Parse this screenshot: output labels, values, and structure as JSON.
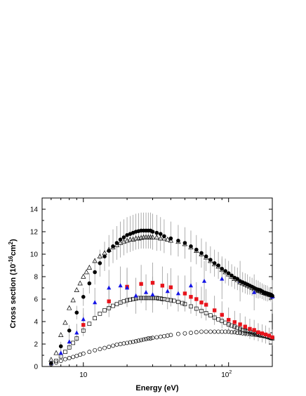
{
  "chart_data": {
    "type": "scatter",
    "xscale": "log",
    "xlim": [
      5.2,
      200
    ],
    "ylim": [
      0,
      15
    ],
    "xlabel": "Energy (eV)",
    "ylabel": "Cross section (10⁻¹⁶cm²)",
    "ylabel_parts": {
      "main": "Cross section (10",
      "exp": "-16",
      "unit": "cm",
      "unit_exp": "2",
      "close": ")"
    },
    "yticks": [
      "0",
      "2",
      "4",
      "6",
      "8",
      "10",
      "12",
      "14"
    ],
    "xtick_labels": [
      {
        "x": 10,
        "base": "10",
        "exp": ""
      },
      {
        "x": 100,
        "base": "10",
        "exp": "2"
      }
    ],
    "grid": false,
    "legend": "none",
    "series": [
      {
        "marker": "filled-circle",
        "color": "#000000",
        "error_bars": true,
        "x": [
          6.0,
          7.0,
          8.0,
          9.0,
          10.0,
          11.0,
          12.0,
          13.0,
          14.0,
          15.0,
          16.0,
          17.0,
          18.0,
          19.0,
          20.0,
          21.0,
          22.0,
          23.0,
          24.0,
          25.0,
          26.0,
          27.0,
          28.0,
          29.0,
          30.0,
          32.0,
          34.0,
          36.0,
          40.0,
          45.0,
          50.0,
          55.0,
          60.0,
          65.0,
          70.0,
          75.0,
          80.0,
          85.0,
          90.0,
          95.0,
          100.0,
          105.0,
          110.0,
          115.0,
          120.0,
          125.0,
          130.0,
          135.0,
          140.0,
          145.0,
          150.0,
          155.0,
          160.0,
          165.0,
          170.0,
          175.0,
          180.0,
          185.0,
          190.0,
          195.0,
          200.0
        ],
        "y": [
          0.3,
          1.8,
          3.2,
          4.8,
          6.2,
          7.4,
          8.4,
          9.2,
          9.8,
          10.3,
          10.7,
          11.0,
          11.3,
          11.5,
          11.7,
          11.8,
          11.9,
          12.0,
          12.05,
          12.1,
          12.1,
          12.1,
          12.1,
          12.1,
          12.0,
          11.9,
          11.8,
          11.6,
          11.4,
          11.2,
          11.0,
          10.7,
          10.4,
          10.1,
          9.8,
          9.5,
          9.2,
          9.0,
          8.7,
          8.5,
          8.3,
          8.1,
          7.9,
          7.8,
          7.6,
          7.5,
          7.4,
          7.3,
          7.2,
          7.1,
          7.0,
          6.9,
          6.85,
          6.8,
          6.7,
          6.6,
          6.55,
          6.5,
          6.45,
          6.4,
          6.3
        ],
        "err": [
          0.3,
          0.4,
          0.5,
          0.6,
          0.8,
          0.9,
          1.1,
          1.2,
          1.3,
          1.4,
          1.5,
          1.5,
          1.6,
          1.6,
          1.6,
          1.6,
          1.6,
          1.6,
          1.6,
          1.6,
          1.6,
          1.6,
          1.6,
          1.6,
          1.6,
          1.6,
          1.5,
          1.5,
          1.5,
          1.4,
          1.4,
          1.4,
          1.3,
          1.3,
          1.3,
          1.2,
          1.2,
          1.2,
          1.1,
          1.1,
          1.1,
          1.0,
          1.0,
          1.0,
          0.9,
          0.9,
          0.9,
          0.9,
          0.8,
          0.8,
          0.8,
          0.8,
          0.8,
          0.7,
          0.7,
          0.7,
          0.7,
          0.7,
          0.6,
          0.6,
          0.6
        ]
      },
      {
        "marker": "open-triangle",
        "color": "#000000",
        "x": [
          6.0,
          6.5,
          7.0,
          7.5,
          8.0,
          8.5,
          9.0,
          9.5,
          10.0,
          10.5,
          11.0,
          12.0,
          13.0,
          14.0,
          15.0,
          16.0,
          17.0,
          18.0,
          19.0,
          20.0,
          21.0,
          22.0,
          23.0,
          24.0,
          25.0,
          26.0,
          27.0,
          28.0,
          29.0,
          30.0,
          32.0,
          34.0,
          36.0,
          38.0,
          40.0,
          45.0,
          50.0,
          55.0,
          60.0,
          65.0,
          70.0,
          75.0,
          80.0,
          85.0,
          90.0,
          95.0,
          100.0,
          105.0,
          110.0,
          115.0,
          120.0,
          125.0,
          130.0,
          135.0,
          140.0,
          145.0,
          150.0,
          155.0,
          160.0,
          165.0,
          170.0,
          175.0,
          180.0,
          185.0,
          190.0,
          195.0,
          200.0
        ],
        "y": [
          0.6,
          1.2,
          2.8,
          3.9,
          5.2,
          5.9,
          6.8,
          7.4,
          8.0,
          8.4,
          8.8,
          9.4,
          9.8,
          10.1,
          10.4,
          10.6,
          10.8,
          11.0,
          11.1,
          11.2,
          11.3,
          11.3,
          11.4,
          11.4,
          11.45,
          11.5,
          11.5,
          11.5,
          11.5,
          11.5,
          11.5,
          11.4,
          11.4,
          11.3,
          11.2,
          11.1,
          10.9,
          10.6,
          10.3,
          10.0,
          9.7,
          9.4,
          9.1,
          8.9,
          8.6,
          8.4,
          8.2,
          8.0,
          7.8,
          7.7,
          7.5,
          7.4,
          7.3,
          7.2,
          7.1,
          7.0,
          6.9,
          6.8,
          6.75,
          6.7,
          6.6,
          6.55,
          6.5,
          6.45,
          6.4,
          6.35,
          6.3
        ]
      },
      {
        "marker": "filled-square",
        "color": "#e8141c",
        "x": [
          10.0,
          15.0,
          20.0,
          25.0,
          30.0,
          35.0,
          40.0,
          50.0,
          55.0,
          60.0,
          65.0,
          70.0,
          80.0,
          90.0,
          100.0,
          110.0,
          120.0,
          130.0,
          140.0,
          150.0,
          160.0,
          170.0,
          180.0,
          190.0,
          200.0
        ],
        "y": [
          3.7,
          5.8,
          7.1,
          7.35,
          7.45,
          7.2,
          7.05,
          6.5,
          6.2,
          6.0,
          5.7,
          5.5,
          5.0,
          4.6,
          4.15,
          3.95,
          3.75,
          3.55,
          3.35,
          3.25,
          3.05,
          2.95,
          2.85,
          2.75,
          2.6
        ],
        "err": [
          1.0,
          1.4,
          1.7,
          1.7,
          1.8,
          1.7,
          1.7,
          1.6,
          1.5,
          1.5,
          1.4,
          1.4,
          1.3,
          1.2,
          1.1,
          1.0,
          1.0,
          0.9,
          0.9,
          0.9,
          0.8,
          0.8,
          0.8,
          0.7,
          0.7
        ]
      },
      {
        "marker": "filled-triangle",
        "color": "#1414e6",
        "x": [
          6.0,
          7.0,
          8.0,
          9.0,
          10.0,
          12.0,
          15.0,
          18.0,
          20.0,
          23.0,
          27.0,
          30.0,
          38.0,
          45.0,
          55.0,
          68.0,
          90.0,
          120.0,
          150.0,
          200.0
        ],
        "y": [
          0.3,
          1.2,
          2.2,
          3.0,
          4.2,
          5.7,
          7.0,
          7.2,
          7.0,
          6.3,
          6.6,
          6.4,
          6.7,
          6.5,
          7.2,
          7.6,
          7.8,
          7.6,
          6.6,
          6.2
        ],
        "err": [
          0.3,
          0.4,
          0.6,
          0.8,
          1.0,
          1.3,
          1.6,
          1.7,
          1.7,
          1.6,
          1.6,
          1.6,
          1.6,
          1.6,
          1.7,
          1.8,
          1.8,
          1.8,
          1.6,
          1.5
        ]
      },
      {
        "marker": "open-square",
        "color": "#000000",
        "x": [
          6.5,
          7.0,
          7.5,
          8.0,
          8.5,
          9.0,
          10.0,
          11.0,
          12.0,
          13.0,
          14.0,
          15.0,
          16.0,
          17.0,
          18.0,
          19.0,
          20.0,
          21.0,
          22.0,
          23.0,
          24.0,
          25.0,
          26.0,
          27.0,
          28.0,
          29.0,
          30.0,
          31.0,
          32.0,
          33.0,
          34.0,
          35.0,
          36.0,
          38.0,
          40.0,
          42.0,
          45.0,
          48.0,
          50.0,
          55.0,
          60.0,
          65.0,
          70.0,
          75.0,
          80.0,
          85.0,
          90.0,
          95.0,
          100.0,
          105.0,
          110.0,
          115.0,
          120.0,
          125.0,
          130.0,
          135.0,
          140.0,
          145.0,
          150.0,
          155.0,
          160.0,
          165.0,
          170.0,
          175.0,
          180.0,
          185.0,
          190.0,
          195.0,
          200.0
        ],
        "y": [
          0.5,
          0.9,
          1.3,
          1.7,
          2.1,
          2.5,
          3.2,
          3.8,
          4.3,
          4.7,
          5.0,
          5.2,
          5.4,
          5.55,
          5.7,
          5.8,
          5.9,
          5.95,
          6.0,
          6.05,
          6.1,
          6.1,
          6.1,
          6.1,
          6.1,
          6.1,
          6.1,
          6.1,
          6.1,
          6.05,
          6.05,
          6.0,
          6.0,
          5.95,
          5.9,
          5.85,
          5.75,
          5.65,
          5.55,
          5.35,
          5.15,
          4.95,
          4.75,
          4.55,
          4.35,
          4.2,
          4.05,
          3.9,
          3.75,
          3.65,
          3.55,
          3.45,
          3.35,
          3.25,
          3.2,
          3.15,
          3.1,
          3.05,
          3.0,
          2.95,
          2.9,
          2.85,
          2.8,
          2.75,
          2.7,
          2.65,
          2.6,
          2.55,
          2.5
        ]
      },
      {
        "marker": "open-circle",
        "color": "#000000",
        "x": [
          6.0,
          6.5,
          7.0,
          7.5,
          8.0,
          8.5,
          9.0,
          9.5,
          10.0,
          11.0,
          12.0,
          13.0,
          14.0,
          15.0,
          16.0,
          17.0,
          18.0,
          19.0,
          20.0,
          21.0,
          22.0,
          23.0,
          24.0,
          25.0,
          26.0,
          27.0,
          28.0,
          29.0,
          30.0,
          32.0,
          34.0,
          36.0,
          38.0,
          40.0,
          45.0,
          50.0,
          55.0,
          60.0,
          65.0,
          70.0,
          75.0,
          80.0,
          85.0,
          90.0,
          95.0,
          100.0,
          105.0,
          110.0,
          115.0,
          120.0,
          125.0,
          130.0,
          135.0,
          140.0,
          145.0,
          150.0,
          155.0,
          160.0,
          165.0,
          170.0,
          175.0,
          180.0,
          185.0,
          190.0,
          195.0,
          200.0
        ],
        "y": [
          0.2,
          0.35,
          0.5,
          0.65,
          0.75,
          0.85,
          0.95,
          1.05,
          1.15,
          1.3,
          1.45,
          1.55,
          1.65,
          1.75,
          1.85,
          1.95,
          2.0,
          2.05,
          2.1,
          2.15,
          2.2,
          2.25,
          2.3,
          2.35,
          2.4,
          2.45,
          2.5,
          2.5,
          2.55,
          2.6,
          2.65,
          2.7,
          2.75,
          2.8,
          2.9,
          2.95,
          3.0,
          3.05,
          3.1,
          3.1,
          3.1,
          3.1,
          3.1,
          3.1,
          3.1,
          3.1,
          3.05,
          3.05,
          3.0,
          3.0,
          2.95,
          2.95,
          2.9,
          2.9,
          2.85,
          2.85,
          2.8,
          2.8,
          2.75,
          2.75,
          2.7,
          2.7,
          2.65,
          2.6,
          2.6,
          2.55
        ]
      }
    ]
  }
}
